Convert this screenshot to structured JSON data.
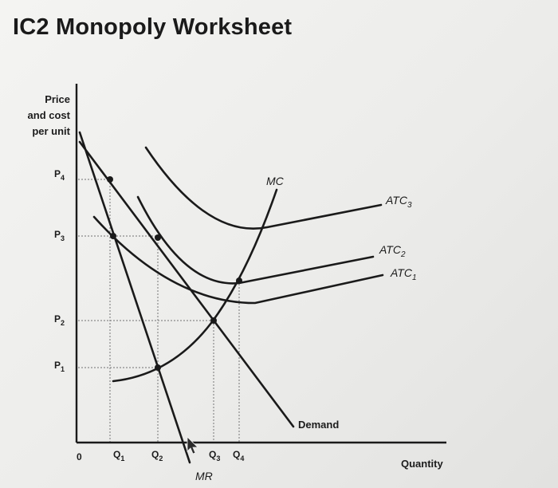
{
  "page": {
    "title": "IC2 Monopoly Worksheet"
  },
  "diagram": {
    "y_axis_label": [
      "Price",
      "and cost",
      "per unit"
    ],
    "x_axis_label": "Quantity",
    "origin": "0",
    "price_ticks": [
      {
        "base": "P",
        "sub": "4"
      },
      {
        "base": "P",
        "sub": "3"
      },
      {
        "base": "P",
        "sub": "2"
      },
      {
        "base": "P",
        "sub": "1"
      }
    ],
    "quantity_ticks": [
      {
        "base": "Q",
        "sub": "1"
      },
      {
        "base": "Q",
        "sub": "2"
      },
      {
        "base": "Q",
        "sub": "3"
      },
      {
        "base": "Q",
        "sub": "4"
      }
    ],
    "curves": {
      "mc": "MC",
      "mr": "MR",
      "demand": "Demand",
      "atc3": {
        "base": "ATC",
        "sub": "3"
      },
      "atc2": {
        "base": "ATC",
        "sub": "2"
      },
      "atc1": {
        "base": "ATC",
        "sub": "1"
      }
    },
    "colors": {
      "ink": "#1a1a1a",
      "guide": "#8a8a8a"
    }
  }
}
